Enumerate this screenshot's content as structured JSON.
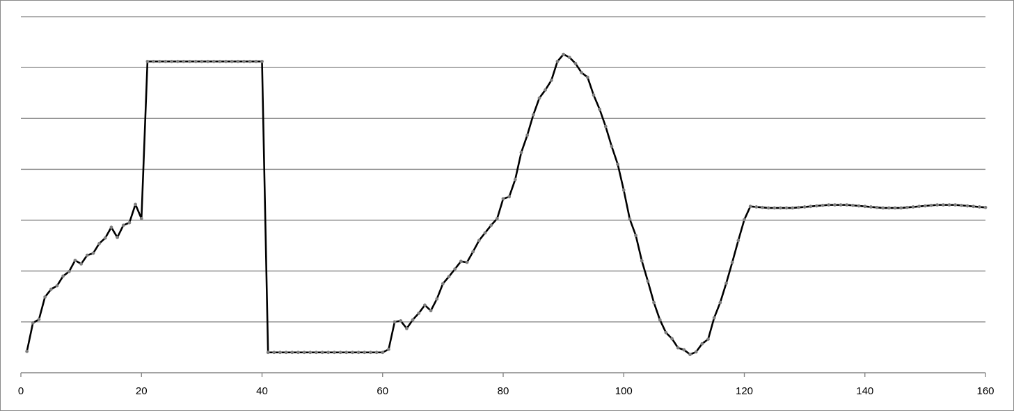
{
  "chart_data": {
    "type": "line",
    "x": [
      1,
      2,
      3,
      4,
      5,
      6,
      7,
      8,
      9,
      10,
      11,
      12,
      13,
      14,
      15,
      16,
      17,
      18,
      19,
      20,
      21,
      22,
      23,
      24,
      25,
      26,
      27,
      28,
      29,
      30,
      31,
      32,
      33,
      34,
      35,
      36,
      37,
      38,
      39,
      40,
      41,
      42,
      43,
      44,
      45,
      46,
      47,
      48,
      49,
      50,
      51,
      52,
      53,
      54,
      55,
      56,
      57,
      58,
      59,
      60,
      61,
      62,
      63,
      64,
      65,
      66,
      67,
      68,
      69,
      70,
      71,
      72,
      73,
      74,
      75,
      76,
      77,
      78,
      79,
      80,
      81,
      82,
      83,
      84,
      85,
      86,
      87,
      88,
      89,
      90,
      91,
      92,
      93,
      94,
      95,
      96,
      97,
      98,
      99,
      100,
      101,
      102,
      103,
      104,
      105,
      106,
      107,
      108,
      109,
      110,
      111,
      112,
      113,
      114,
      115,
      116,
      117,
      118,
      119,
      120,
      121,
      122,
      123,
      124,
      125,
      126,
      127,
      128,
      129,
      130,
      131,
      132,
      133,
      134,
      135,
      136,
      137,
      138,
      139,
      140,
      141,
      142,
      143,
      144,
      145,
      146,
      147,
      148,
      149,
      150,
      151,
      152,
      153,
      154,
      155,
      156,
      157,
      158,
      159,
      160
    ],
    "values": [
      0.42,
      0.98,
      1.05,
      1.49,
      1.64,
      1.71,
      1.9,
      1.99,
      2.21,
      2.14,
      2.31,
      2.35,
      2.54,
      2.65,
      2.86,
      2.66,
      2.9,
      2.95,
      3.31,
      3.03,
      6.12,
      6.12,
      6.12,
      6.12,
      6.12,
      6.12,
      6.12,
      6.12,
      6.12,
      6.12,
      6.12,
      6.12,
      6.12,
      6.12,
      6.12,
      6.12,
      6.12,
      6.12,
      6.12,
      6.12,
      0.4,
      0.4,
      0.4,
      0.4,
      0.4,
      0.4,
      0.4,
      0.4,
      0.4,
      0.4,
      0.4,
      0.4,
      0.4,
      0.4,
      0.4,
      0.4,
      0.4,
      0.4,
      0.4,
      0.4,
      0.46,
      1.0,
      1.02,
      0.87,
      1.04,
      1.17,
      1.33,
      1.22,
      1.45,
      1.75,
      1.89,
      2.04,
      2.19,
      2.17,
      2.38,
      2.6,
      2.75,
      2.9,
      3.03,
      3.42,
      3.46,
      3.8,
      4.33,
      4.67,
      5.07,
      5.4,
      5.56,
      5.75,
      6.12,
      6.26,
      6.2,
      6.08,
      5.9,
      5.81,
      5.46,
      5.18,
      4.84,
      4.45,
      4.1,
      3.59,
      3.02,
      2.7,
      2.2,
      1.8,
      1.38,
      1.04,
      0.79,
      0.67,
      0.49,
      0.45,
      0.36,
      0.41,
      0.57,
      0.66,
      1.08,
      1.38,
      1.76,
      2.17,
      2.6,
      3.01,
      3.27,
      3.26,
      3.25,
      3.24,
      3.24,
      3.24,
      3.24,
      3.24,
      3.25,
      3.26,
      3.27,
      3.28,
      3.29,
      3.3,
      3.3,
      3.3,
      3.3,
      3.29,
      3.28,
      3.27,
      3.26,
      3.25,
      3.24,
      3.24,
      3.24,
      3.24,
      3.25,
      3.26,
      3.27,
      3.28,
      3.29,
      3.3,
      3.3,
      3.3,
      3.3,
      3.29,
      3.28,
      3.27,
      3.26,
      3.25
    ],
    "color": "#000000",
    "marker_color": "#7f7f7f",
    "xlim": [
      0,
      160
    ],
    "xticks": [
      0,
      20,
      40,
      60,
      80,
      100,
      120,
      140,
      160
    ],
    "ylim": [
      0,
      7
    ],
    "yticks": [
      0,
      1,
      2,
      3,
      4,
      5,
      6,
      7
    ],
    "ytick_labels": false,
    "grid": true
  }
}
